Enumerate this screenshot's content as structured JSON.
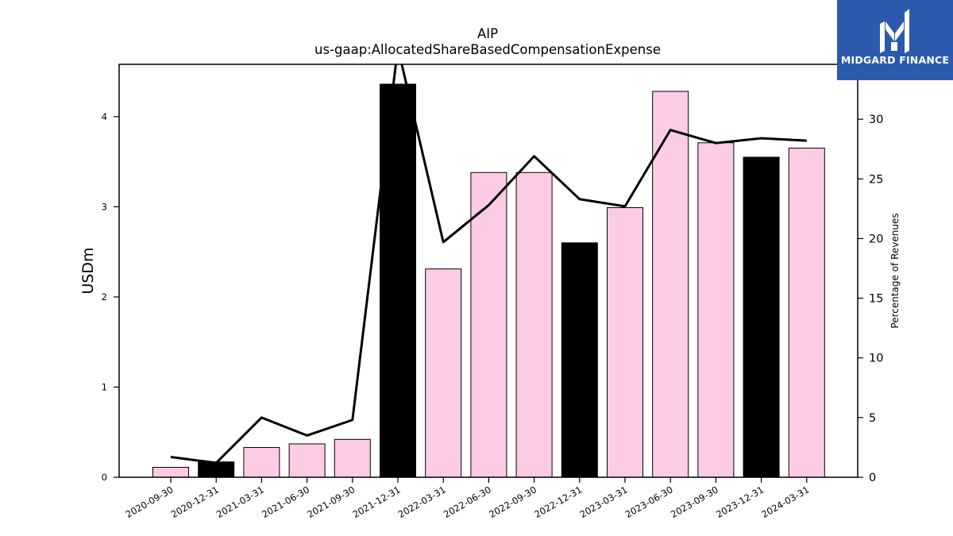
{
  "chart_data": {
    "type": "bar",
    "title": "AIP",
    "subtitle": "us-gaap:AllocatedShareBasedCompensationExpense",
    "ylabel": "USDm",
    "y2label": "Percentage of Revenues",
    "categories": [
      "2020-09-30",
      "2020-12-31",
      "2021-03-31",
      "2021-06-30",
      "2021-09-30",
      "2021-12-31",
      "2022-03-31",
      "2022-06-30",
      "2022-09-30",
      "2022-12-31",
      "2023-03-31",
      "2023-06-30",
      "2023-09-30",
      "2023-12-31",
      "2024-03-31"
    ],
    "series": [
      {
        "values": [
          0.11,
          0.17,
          0.33,
          0.37,
          0.42,
          4.36,
          2.31,
          3.38,
          3.38,
          2.6,
          2.99,
          4.28,
          3.71,
          3.55,
          3.65
        ],
        "colors": [
          "#fccce6",
          "#000000",
          "#fccce6",
          "#fccce6",
          "#fccce6",
          "#000000",
          "#fccce6",
          "#fccce6",
          "#fccce6",
          "#000000",
          "#fccce6",
          "#fccce6",
          "#fccce6",
          "#000000",
          "#fccce6"
        ]
      },
      {
        "axis": "right",
        "values": [
          1.7,
          1.2,
          5.0,
          3.5,
          4.8,
          36.0,
          19.7,
          22.8,
          26.9,
          23.3,
          22.7,
          29.1,
          28.0,
          28.4,
          28.2
        ]
      }
    ],
    "ylim": [
      0,
      4.58
    ],
    "y2lim": [
      0,
      34.6
    ],
    "yticks": [
      0,
      1,
      2,
      3,
      4
    ],
    "y2ticks": [
      0,
      5,
      10,
      15,
      20,
      25,
      30
    ],
    "grid": false,
    "legend": "none"
  },
  "logo": {
    "text": "MIDGARD FINANCE",
    "color": "#2b5aad"
  }
}
